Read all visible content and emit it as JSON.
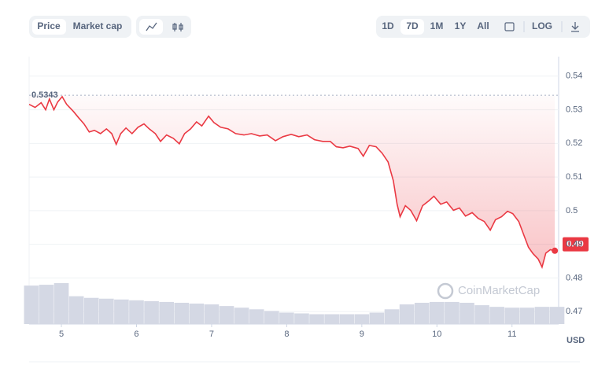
{
  "toolbar": {
    "views": [
      "Price",
      "Market cap"
    ],
    "ranges": [
      "1D",
      "7D",
      "1M",
      "1Y",
      "All"
    ],
    "log": "LOG"
  },
  "chart_data": {
    "type": "line",
    "color": "#ea3943",
    "x": [
      4.57,
      4.65,
      4.73,
      4.79,
      4.84,
      4.9,
      4.95,
      5.01,
      5.07,
      5.16,
      5.23,
      5.3,
      5.37,
      5.44,
      5.52,
      5.6,
      5.67,
      5.73,
      5.79,
      5.86,
      5.94,
      6.02,
      6.1,
      6.17,
      6.25,
      6.32,
      6.4,
      6.49,
      6.57,
      6.64,
      6.72,
      6.8,
      6.87,
      6.96,
      7.03,
      7.12,
      7.22,
      7.32,
      7.43,
      7.53,
      7.64,
      7.74,
      7.85,
      7.95,
      8.06,
      8.16,
      8.27,
      8.37,
      8.48,
      8.58,
      8.66,
      8.75,
      8.84,
      8.95,
      9.02,
      9.1,
      9.19,
      9.27,
      9.35,
      9.42,
      9.47,
      9.51,
      9.58,
      9.65,
      9.73,
      9.81,
      9.89,
      9.96,
      10.05,
      10.13,
      10.22,
      10.3,
      10.38,
      10.47,
      10.55,
      10.63,
      10.71,
      10.78,
      10.86,
      10.94,
      11.01,
      11.09,
      11.16,
      11.22,
      11.28,
      11.35,
      11.4,
      11.45,
      11.51,
      11.57
    ],
    "values": [
      0.5316,
      0.5307,
      0.5321,
      0.53,
      0.5332,
      0.53,
      0.5323,
      0.5339,
      0.5316,
      0.5295,
      0.5276,
      0.5258,
      0.5234,
      0.5239,
      0.5229,
      0.5243,
      0.5229,
      0.5197,
      0.5229,
      0.5246,
      0.5229,
      0.5248,
      0.5258,
      0.5243,
      0.5229,
      0.5206,
      0.5225,
      0.5215,
      0.5199,
      0.5229,
      0.5243,
      0.5264,
      0.5252,
      0.5281,
      0.5262,
      0.5248,
      0.5243,
      0.5229,
      0.5225,
      0.5229,
      0.5222,
      0.5225,
      0.5208,
      0.522,
      0.5227,
      0.522,
      0.5225,
      0.5211,
      0.5206,
      0.5206,
      0.519,
      0.5187,
      0.5192,
      0.5185,
      0.5162,
      0.5194,
      0.519,
      0.5171,
      0.5145,
      0.5089,
      0.5019,
      0.4982,
      0.5015,
      0.5001,
      0.497,
      0.5015,
      0.5029,
      0.5043,
      0.5019,
      0.5026,
      0.5001,
      0.5008,
      0.4984,
      0.4994,
      0.4977,
      0.4968,
      0.4942,
      0.4973,
      0.4982,
      0.4998,
      0.4991,
      0.4968,
      0.4926,
      0.4891,
      0.4872,
      0.4856,
      0.4832,
      0.4874,
      0.4884,
      0.4881
    ],
    "high": 0.5343,
    "current_price": 0.49,
    "volume": {
      "color": "#d4d8e4",
      "x": [
        4.6,
        4.8,
        5.0,
        5.2,
        5.4,
        5.6,
        5.8,
        6.0,
        6.2,
        6.4,
        6.6,
        6.8,
        7.0,
        7.2,
        7.4,
        7.6,
        7.8,
        8.0,
        8.2,
        8.4,
        8.6,
        8.8,
        9.0,
        9.2,
        9.4,
        9.6,
        9.8,
        10.0,
        10.2,
        10.4,
        10.6,
        10.8,
        11.0,
        11.2,
        11.4,
        11.6
      ],
      "values": [
        47,
        48,
        50,
        34,
        32,
        31,
        30,
        29,
        28,
        27,
        26,
        25,
        24,
        22,
        20,
        18,
        16,
        14,
        13,
        12,
        12,
        12,
        12,
        14,
        18,
        24,
        26,
        27,
        27,
        26,
        23,
        21,
        20,
        20,
        21,
        21
      ]
    },
    "xlim": [
      4.57,
      11.6
    ],
    "xticks": [
      5,
      6,
      7,
      8,
      9,
      10,
      11
    ],
    "ylim": [
      0.4663,
      0.5458
    ],
    "yticks": [
      0.47,
      0.48,
      0.49,
      0.5,
      0.51,
      0.52,
      0.53,
      0.54
    ],
    "y_unit": "USD",
    "watermark": "CoinMarketCap",
    "grid": true
  }
}
